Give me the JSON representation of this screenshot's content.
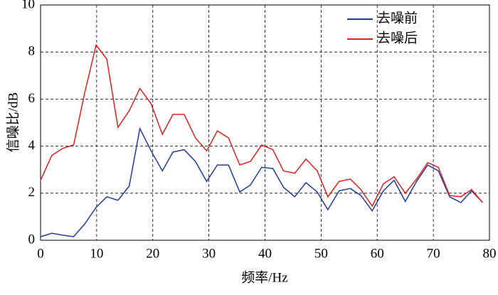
{
  "chart_data": {
    "type": "line",
    "xlabel": "频率/Hz",
    "ylabel": "信噪比/dB",
    "x": [
      0,
      2,
      3.9,
      5.9,
      7.9,
      9.9,
      11.8,
      13.8,
      15.8,
      17.7,
      19.7,
      21.7,
      23.6,
      25.6,
      27.6,
      29.6,
      31.5,
      33.5,
      35.5,
      37.4,
      39.4,
      41.4,
      43.3,
      45.3,
      47.3,
      49.3,
      51.2,
      53.2,
      55.2,
      57.1,
      59.1,
      61.1,
      63,
      65,
      67,
      69,
      70.9,
      72.9,
      74.9,
      76.8,
      78.8
    ],
    "series": [
      {
        "name": "去噪前",
        "color": "#1f3a9e",
        "values": [
          0.15,
          0.3,
          0.22,
          0.15,
          0.7,
          1.4,
          1.85,
          1.7,
          2.3,
          4.75,
          3.8,
          2.95,
          3.75,
          3.85,
          3.35,
          2.5,
          3.2,
          3.2,
          2.05,
          2.35,
          3.1,
          3.05,
          2.25,
          1.85,
          2.45,
          2.05,
          1.3,
          2.1,
          2.2,
          1.9,
          1.25,
          2.1,
          2.55,
          1.65,
          2.5,
          3.2,
          2.95,
          1.85,
          1.6,
          2.1,
          1.6
        ]
      },
      {
        "name": "去噪后",
        "color": "#e0201e",
        "values": [
          2.55,
          3.6,
          3.9,
          4.05,
          6.3,
          8.3,
          7.7,
          4.8,
          5.5,
          6.45,
          5.8,
          4.5,
          5.35,
          5.35,
          4.35,
          3.8,
          4.65,
          4.35,
          3.2,
          3.35,
          4.05,
          3.85,
          2.95,
          2.85,
          3.45,
          2.95,
          1.85,
          2.5,
          2.6,
          2.15,
          1.45,
          2.4,
          2.7,
          2.0,
          2.6,
          3.3,
          3.1,
          1.9,
          1.85,
          2.15,
          1.6
        ]
      }
    ],
    "xlim": [
      0,
      80
    ],
    "xticks": [
      0,
      10,
      20,
      30,
      40,
      50,
      60,
      70,
      80
    ],
    "ylim": [
      0,
      10
    ],
    "yticks": [
      0,
      2,
      4,
      6,
      8,
      10
    ],
    "grid": true,
    "legend": "upper right"
  }
}
